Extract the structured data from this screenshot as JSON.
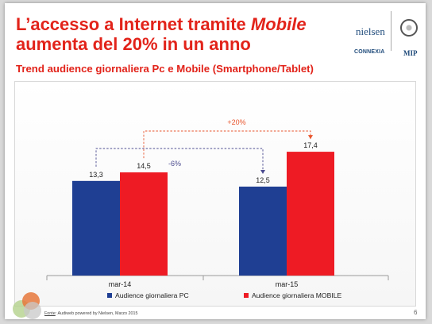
{
  "slide": {
    "title_line1_prefix": "L’accesso a Internet tramite ",
    "title_line1_em": "Mobile",
    "title_line2": "aumenta del 20% in un anno",
    "subtitle": "Trend audience giornaliera Pc e Mobile (Smartphone/Tablet)",
    "logos": {
      "nielsen": "nielsen",
      "connexia": "CONNEXIA",
      "mip": "MIP"
    },
    "source_label": "Fonte",
    "source_text": ": Audiweb powered by Nielsen, Marzo 2015",
    "page_number": "6"
  },
  "colors": {
    "title": "#e2231a",
    "pc": "#1f3f93",
    "mobile": "#ee1b24",
    "annotation_pc": "#4b4b8f",
    "annotation_mobile": "#e8542c"
  },
  "chart_data": {
    "type": "bar",
    "categories": [
      "mar-14",
      "mar-15"
    ],
    "series": [
      {
        "name": "Audience giornaliera PC",
        "values": [
          13.3,
          12.5
        ],
        "labels": [
          "13,3",
          "12,5"
        ],
        "color": "#1f3f93"
      },
      {
        "name": "Audience giornaliera MOBILE",
        "values": [
          14.5,
          17.4
        ],
        "labels": [
          "14,5",
          "17,4"
        ],
        "color": "#ee1b24"
      }
    ],
    "ylim": [
      0,
      25
    ],
    "grid": false,
    "legend_position": "bottom",
    "annotations": [
      {
        "text": "-6%",
        "series": "Audience giornaliera PC",
        "from": "mar-14",
        "to": "mar-15",
        "style": "dashed"
      },
      {
        "text": "+20%",
        "series": "Audience giornaliera MOBILE",
        "from": "mar-14",
        "to": "mar-15",
        "style": "dashed"
      }
    ]
  }
}
